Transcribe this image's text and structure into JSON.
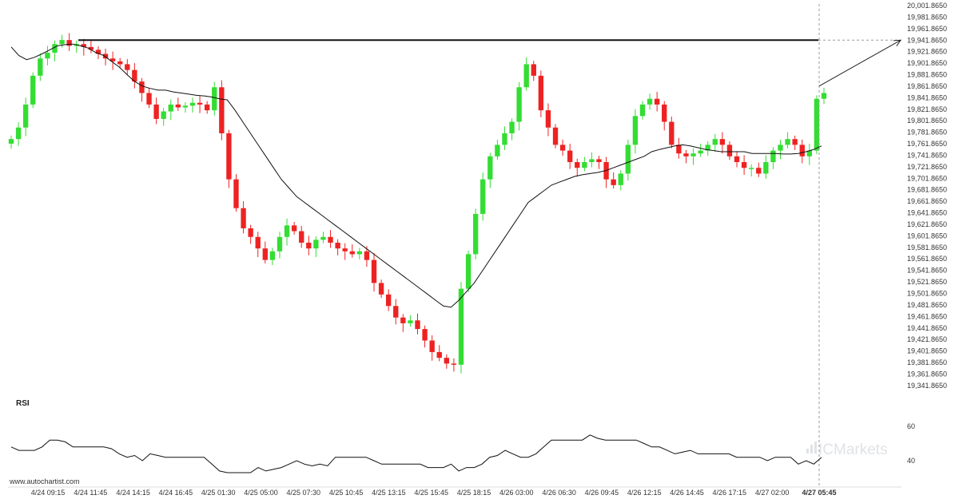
{
  "chart_data": {
    "type": "candlestick",
    "y_ticks": [
      "20,001.8650",
      "19,981.8650",
      "19,961.8650",
      "19,941.8650",
      "19,921.8650",
      "19,901.8650",
      "19,881.8650",
      "19,861.8650",
      "19,841.8650",
      "19,821.8650",
      "19,801.8650",
      "19,781.8650",
      "19,761.8650",
      "19,741.8650",
      "19,721.8650",
      "19,701.8650",
      "19,681.8650",
      "19,661.8650",
      "19,641.8650",
      "19,621.8650",
      "19,601.8650",
      "19,581.8650",
      "19,561.8650",
      "19,541.8650",
      "19,521.8650",
      "19,501.8650",
      "19,481.8650",
      "19,461.8650",
      "19,441.8650",
      "19,421.8650",
      "19,401.8650",
      "19,381.8650",
      "19,361.8650",
      "19,341.8650"
    ],
    "ylim": [
      19330,
      20005
    ],
    "x_ticks": [
      "4/24 09:15",
      "4/24 11:45",
      "4/24 14:15",
      "4/24 16:45",
      "4/25 01:30",
      "4/25 05:00",
      "4/25 07:30",
      "4/25 10:45",
      "4/25 13:15",
      "4/25 15:45",
      "4/25 18:15",
      "4/26 03:00",
      "4/26 06:30",
      "4/26 09:45",
      "4/26 12:15",
      "4/26 14:45",
      "4/26 17:15",
      "4/27 02:00",
      "4/27 05:45"
    ],
    "resistance_level": 19941.865,
    "projection": {
      "from": 19862,
      "to": 19941.865
    },
    "colors": {
      "up": "#33dd33",
      "down": "#ee2222",
      "line": "#111111",
      "grid": "#e6e6e6"
    },
    "closes": [
      19770,
      19790,
      19830,
      19880,
      19910,
      19920,
      19935,
      19942,
      19932,
      19935,
      19930,
      19925,
      19918,
      19910,
      19905,
      19900,
      19890,
      19870,
      19850,
      19830,
      19805,
      19818,
      19830,
      19825,
      19828,
      19833,
      19830,
      19820,
      19860,
      19780,
      19700,
      19650,
      19615,
      19600,
      19580,
      19560,
      19575,
      19600,
      19620,
      19610,
      19590,
      19580,
      19595,
      19600,
      19590,
      19580,
      19575,
      19570,
      19575,
      19560,
      19520,
      19500,
      19480,
      19460,
      19450,
      19455,
      19440,
      19420,
      19400,
      19390,
      19380,
      19378,
      19510,
      19570,
      19640,
      19700,
      19740,
      19760,
      19780,
      19800,
      19860,
      19900,
      19880,
      19820,
      19790,
      19760,
      19750,
      19730,
      19720,
      19730,
      19735,
      19730,
      19700,
      19690,
      19710,
      19760,
      19810,
      19830,
      19840,
      19830,
      19800,
      19760,
      19745,
      19740,
      19745,
      19750,
      19760,
      19770,
      19760,
      19740,
      19730,
      19720,
      19720,
      19710,
      19730,
      19750,
      19760,
      19770,
      19760,
      19740,
      19750,
      19840,
      19850
    ],
    "ma_values": [
      19930,
      19915,
      19908,
      19912,
      19918,
      19925,
      19932,
      19934,
      19935,
      19932,
      19928,
      19920,
      19915,
      19905,
      19895,
      19882,
      19870,
      19862,
      19858,
      19855,
      19855,
      19852,
      19850,
      19848,
      19846,
      19845,
      19843,
      19840,
      19838,
      19820,
      19800,
      19780,
      19760,
      19740,
      19720,
      19700,
      19685,
      19670,
      19660,
      19650,
      19640,
      19630,
      19620,
      19610,
      19600,
      19590,
      19580,
      19570,
      19560,
      19550,
      19540,
      19530,
      19520,
      19510,
      19500,
      19490,
      19480,
      19478,
      19490,
      19505,
      19520,
      19540,
      19560,
      19580,
      19600,
      19620,
      19640,
      19660,
      19670,
      19680,
      19690,
      19695,
      19700,
      19705,
      19708,
      19710,
      19712,
      19715,
      19720,
      19725,
      19730,
      19735,
      19740,
      19748,
      19752,
      19755,
      19758,
      19760,
      19758,
      19755,
      19752,
      19750,
      19748,
      19748,
      19748,
      19748,
      19745,
      19745,
      19745,
      19745,
      19744,
      19744,
      19745,
      19748,
      19752,
      19758
    ],
    "rsi": {
      "label": "RSI",
      "ticks": [
        "60",
        "40"
      ],
      "ylim": [
        30,
        70
      ],
      "values": [
        48,
        46,
        46,
        46,
        48,
        52,
        52,
        51,
        48,
        48,
        48,
        48,
        48,
        47,
        44,
        42,
        43,
        40,
        44,
        43,
        42,
        42,
        42,
        42,
        42,
        42,
        38,
        34,
        33,
        33,
        33,
        33,
        36,
        34,
        35,
        36,
        38,
        40,
        38,
        37,
        38,
        37,
        42,
        42,
        42,
        42,
        42,
        40,
        38,
        38,
        38,
        38,
        38,
        38,
        36,
        36,
        36,
        38,
        34,
        36,
        36,
        38,
        42,
        43,
        46,
        44,
        42,
        42,
        44,
        48,
        52,
        52,
        52,
        52,
        52,
        55,
        53,
        52,
        52,
        52,
        52,
        52,
        50,
        48,
        48,
        46,
        44,
        45,
        46,
        44,
        44,
        44,
        44,
        44,
        42,
        42,
        42,
        42,
        40,
        42,
        42,
        42,
        38,
        40,
        38,
        42
      ]
    }
  },
  "watermark": {
    "site": "www.autochartist.com",
    "brand": "ICMarkets"
  }
}
